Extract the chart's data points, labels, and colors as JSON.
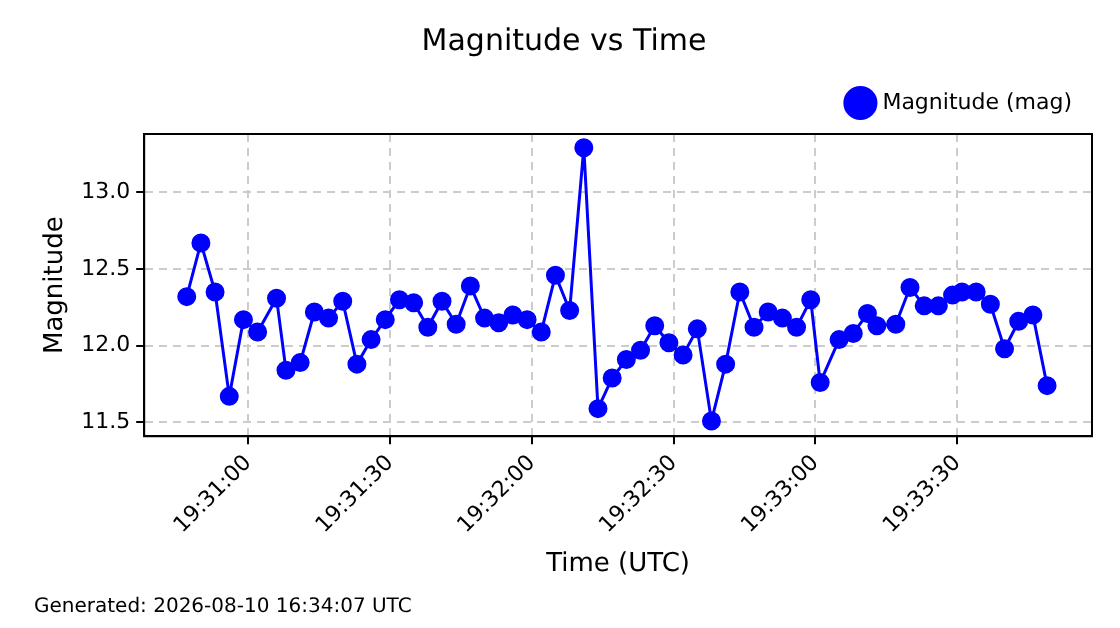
{
  "chart_data": {
    "type": "line",
    "title": "Magnitude vs Time",
    "xlabel": "Time (UTC)",
    "ylabel": "Magnitude",
    "annotations": [
      "Generated: 2026-08-10 16:34:07 UTC"
    ],
    "x": [
      19.513056,
      19.513889,
      19.514722,
      19.515556,
      19.516389,
      19.517222,
      19.518333,
      19.518889,
      19.519722,
      19.520556,
      19.521389,
      19.522222,
      19.523056,
      19.523889,
      19.524722,
      19.525556,
      19.526389,
      19.527222,
      19.528056,
      19.528889,
      19.529722,
      19.530556,
      19.531389,
      19.532222,
      19.533056,
      19.533889,
      19.534722,
      19.535556,
      19.536389,
      19.537222,
      19.538056,
      19.538889,
      19.539722,
      19.540556,
      19.541389,
      19.542222,
      19.543056,
      19.543889,
      19.544722,
      19.545556,
      19.546389,
      19.547222,
      19.548056,
      19.548889,
      19.549722,
      19.550278,
      19.551389,
      19.552222,
      19.553056,
      19.553611,
      19.554722,
      19.555556,
      19.556389,
      19.557222,
      19.558056,
      19.558611,
      19.559444,
      19.560278,
      19.561111,
      19.561944,
      19.562778,
      19.563611
    ],
    "series": [
      {
        "name": "Magnitude (mag)",
        "color": "#0000ff",
        "values": [
          12.32,
          12.67,
          12.35,
          11.67,
          12.17,
          12.09,
          12.31,
          11.84,
          11.89,
          12.22,
          12.18,
          12.29,
          11.88,
          12.04,
          12.17,
          12.3,
          12.28,
          12.12,
          12.29,
          12.14,
          12.39,
          12.18,
          12.15,
          12.2,
          12.17,
          12.09,
          12.46,
          12.23,
          13.29,
          11.59,
          11.79,
          11.91,
          11.97,
          12.13,
          12.02,
          11.94,
          12.11,
          11.51,
          11.88,
          12.35,
          12.12,
          12.22,
          12.18,
          12.12,
          12.3,
          11.76,
          12.04,
          12.08,
          12.21,
          12.13,
          12.14,
          12.38,
          12.26,
          12.26,
          12.33,
          12.35,
          12.35,
          12.27,
          11.98,
          12.16,
          12.2,
          11.74
        ]
      }
    ],
    "xlim": [
      19.510556,
      19.56625
    ],
    "xticks": [
      {
        "value": 19.516667,
        "label": "19:31:00"
      },
      {
        "value": 19.525,
        "label": "19:31:30"
      },
      {
        "value": 19.533333,
        "label": "19:32:00"
      },
      {
        "value": 19.541667,
        "label": "19:32:30"
      },
      {
        "value": 19.55,
        "label": "19:33:00"
      },
      {
        "value": 19.558333,
        "label": "19:33:30"
      }
    ],
    "ylim": [
      11.41,
      13.38
    ],
    "yticks": [
      11.5,
      {
        "value": 12,
        "label": "12.0"
      },
      12.5,
      {
        "value": 13,
        "label": "13.0"
      }
    ],
    "grid": true,
    "legend": "top right",
    "marker": "circle",
    "line_style": "solid"
  }
}
